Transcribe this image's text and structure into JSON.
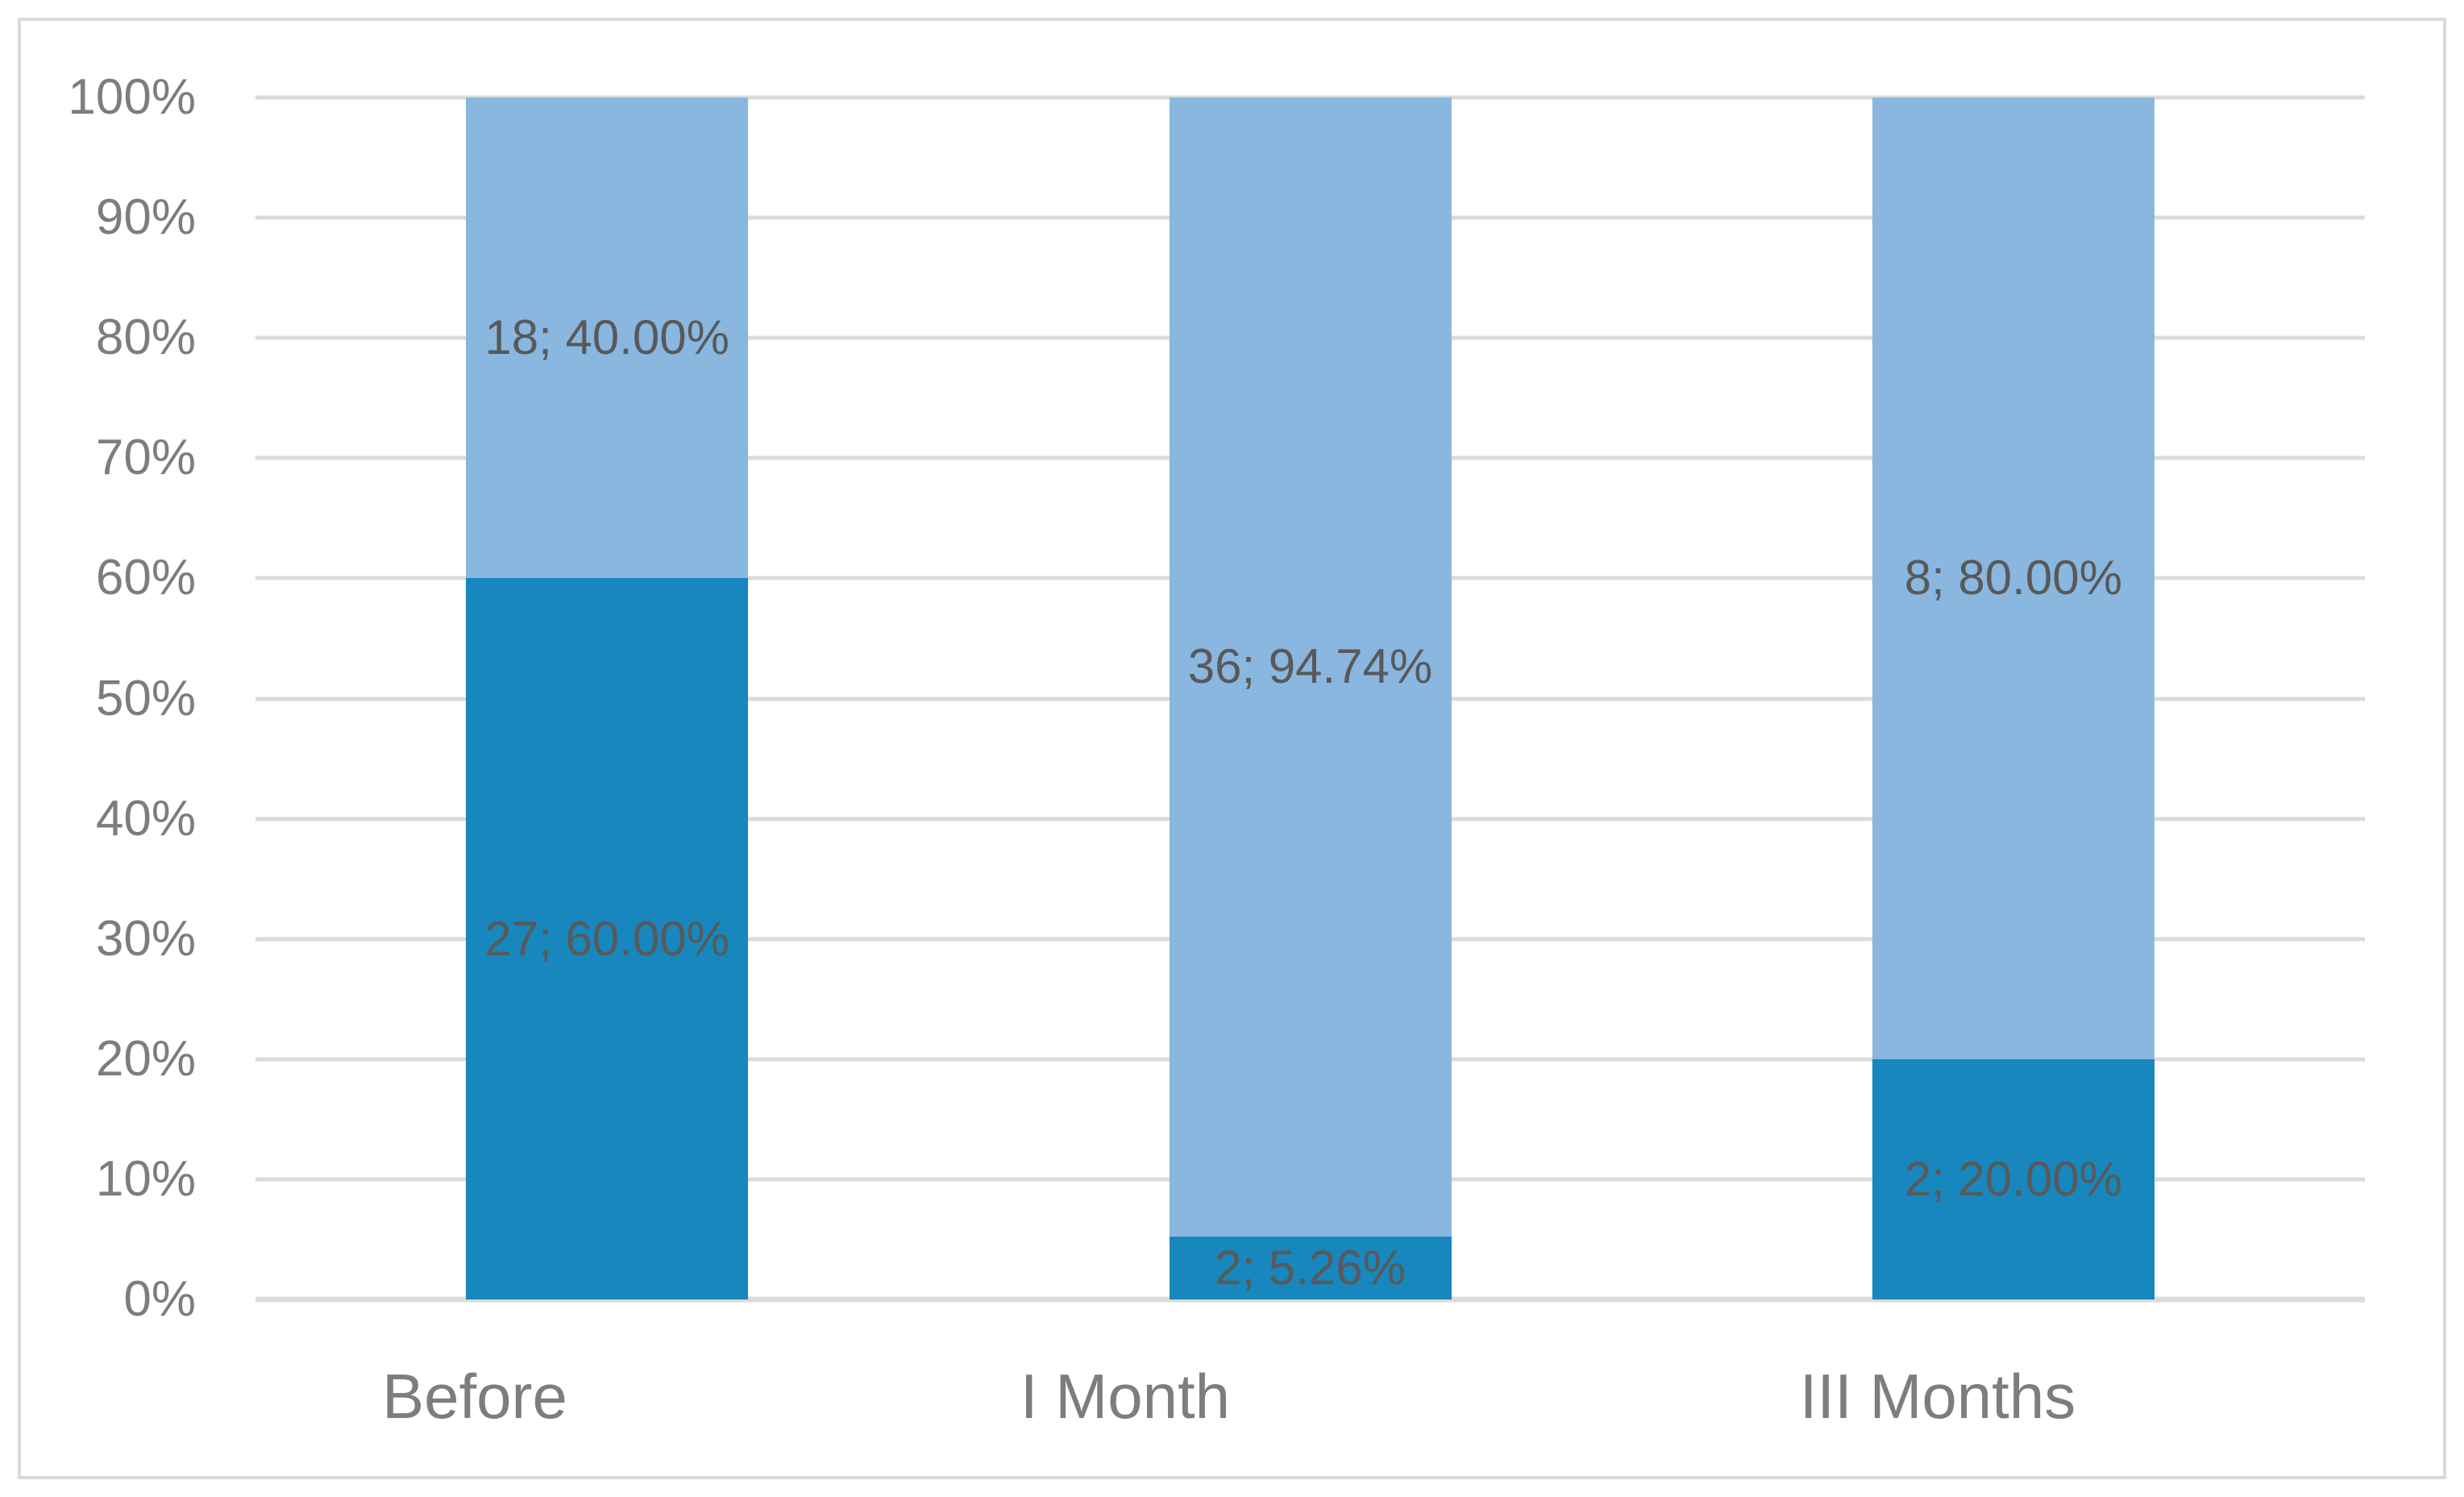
{
  "chart_data": {
    "type": "bar",
    "subtype": "stacked-100-percent-column",
    "title": "",
    "xlabel": "",
    "ylabel": "",
    "legend_position": "none",
    "grid": true,
    "categories": [
      "Before",
      "I Month",
      "III Months"
    ],
    "series": [
      {
        "name": "dark-blue-bottom-segment",
        "color": "#1787bd",
        "counts": [
          27,
          2,
          2
        ],
        "percents": [
          60.0,
          5.26,
          20.0
        ],
        "labels": [
          "27; 60.00%",
          "2; 5.26%",
          "2; 20.00%"
        ]
      },
      {
        "name": "light-blue-top-segment",
        "color": "#89b7e0",
        "counts": [
          18,
          36,
          8
        ],
        "percents": [
          40.0,
          94.74,
          80.0
        ],
        "labels": [
          "18; 40.00%",
          "36; 94.74%",
          "8; 80.00%"
        ]
      }
    ],
    "y_axis": {
      "min": 0,
      "max": 100,
      "tick_step": 10,
      "tick_labels": [
        "0%",
        "10%",
        "20%",
        "30%",
        "40%",
        "50%",
        "60%",
        "70%",
        "80%",
        "90%",
        "100%"
      ]
    },
    "label_color": "#595959",
    "axis_text_color": "#7d7d7d",
    "gridline_color": "#dbdbdb",
    "frame_color": "#d9d9d9"
  }
}
